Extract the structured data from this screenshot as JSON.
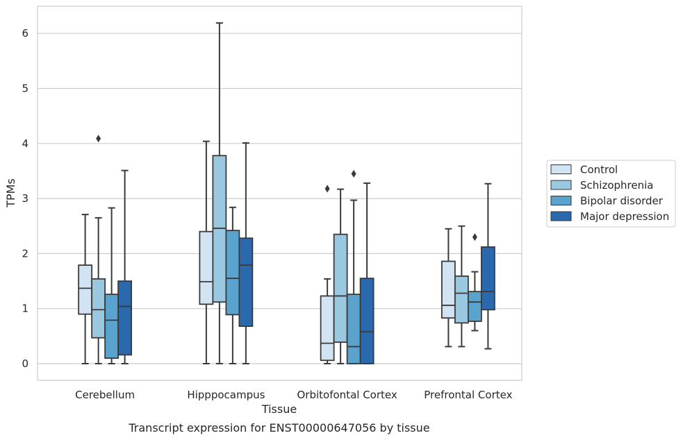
{
  "chart_data": {
    "type": "box",
    "xlabel": "Tissue",
    "ylabel": "TPMs",
    "caption": "Transcript expression for ENST00000647056 by tissue",
    "ylim": [
      -0.3,
      6.5
    ],
    "yticks": [
      0,
      1,
      2,
      3,
      4,
      5,
      6
    ],
    "grid": "horizontal",
    "legend_position": "right",
    "categories": [
      "Cerebellum",
      "Hipppocampus",
      "Orbitofontal Cortex",
      "Prefrontal Cortex"
    ],
    "series": [
      {
        "name": "Control",
        "color": "#d2e3f3",
        "boxes": [
          {
            "whislo": 0.0,
            "q1": 0.9,
            "med": 1.37,
            "q3": 1.79,
            "whishi": 2.71,
            "fliers": []
          },
          {
            "whislo": 0.0,
            "q1": 1.08,
            "med": 1.49,
            "q3": 2.4,
            "whishi": 4.04,
            "fliers": []
          },
          {
            "whislo": 0.0,
            "q1": 0.06,
            "med": 0.37,
            "q3": 1.23,
            "whishi": 1.54,
            "fliers": [
              3.18
            ]
          },
          {
            "whislo": 0.31,
            "q1": 0.83,
            "med": 1.06,
            "q3": 1.86,
            "whishi": 2.45,
            "fliers": []
          }
        ]
      },
      {
        "name": "Schizophrenia",
        "color": "#9ac8e0",
        "boxes": [
          {
            "whislo": 0.0,
            "q1": 0.47,
            "med": 0.98,
            "q3": 1.54,
            "whishi": 2.65,
            "fliers": [
              4.09
            ]
          },
          {
            "whislo": 0.0,
            "q1": 1.12,
            "med": 2.46,
            "q3": 3.78,
            "whishi": 6.19,
            "fliers": []
          },
          {
            "whislo": 0.0,
            "q1": 0.39,
            "med": 1.23,
            "q3": 2.35,
            "whishi": 3.17,
            "fliers": []
          },
          {
            "whislo": 0.31,
            "q1": 0.74,
            "med": 1.28,
            "q3": 1.59,
            "whishi": 2.5,
            "fliers": []
          }
        ]
      },
      {
        "name": "Bipolar disorder",
        "color": "#5ba3cf",
        "boxes": [
          {
            "whislo": 0.0,
            "q1": 0.1,
            "med": 0.79,
            "q3": 1.26,
            "whishi": 2.83,
            "fliers": []
          },
          {
            "whislo": 0.0,
            "q1": 0.89,
            "med": 1.55,
            "q3": 2.42,
            "whishi": 2.84,
            "fliers": []
          },
          {
            "whislo": 0.0,
            "q1": 0.0,
            "med": 0.31,
            "q3": 1.26,
            "whishi": 2.97,
            "fliers": [
              3.45
            ]
          },
          {
            "whislo": 0.6,
            "q1": 0.77,
            "med": 1.12,
            "q3": 1.31,
            "whishi": 1.67,
            "fliers": [
              2.3
            ]
          }
        ]
      },
      {
        "name": "Major depression",
        "color": "#2a69ad",
        "boxes": [
          {
            "whislo": 0.0,
            "q1": 0.16,
            "med": 1.04,
            "q3": 1.5,
            "whishi": 3.51,
            "fliers": []
          },
          {
            "whislo": 0.0,
            "q1": 0.68,
            "med": 1.79,
            "q3": 2.28,
            "whishi": 4.01,
            "fliers": []
          },
          {
            "whislo": 0.0,
            "q1": 0.0,
            "med": 0.58,
            "q3": 1.55,
            "whishi": 3.28,
            "fliers": []
          },
          {
            "whislo": 0.27,
            "q1": 0.98,
            "med": 1.31,
            "q3": 2.12,
            "whishi": 3.27,
            "fliers": []
          }
        ]
      }
    ]
  }
}
